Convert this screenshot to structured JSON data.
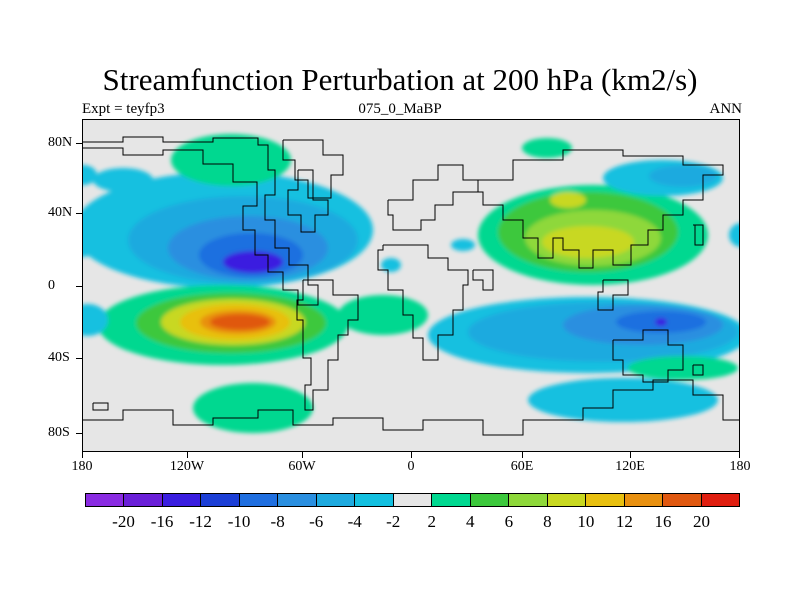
{
  "title": "Streamfunction Perturbation at 200 hPa (km2/s)",
  "subtitle_left": "Expt = teyfp3",
  "subtitle_center": "075_0_MaBP",
  "subtitle_right": "ANN",
  "y_axis_labels": [
    "80N",
    "40N",
    "0",
    "40S",
    "80S"
  ],
  "x_axis_labels": [
    "180",
    "120W",
    "60W",
    "0",
    "60E",
    "120E",
    "180"
  ],
  "colorbar": {
    "labels": [
      "-20",
      "-16",
      "-12",
      "-10",
      "-8",
      "-6",
      "-4",
      "-2",
      "2",
      "4",
      "6",
      "8",
      "10",
      "12",
      "16",
      "20"
    ],
    "colors": [
      "#8a2be2",
      "#6a1fd8",
      "#3a1ee0",
      "#1c3fd6",
      "#1f6fe0",
      "#2a8fe0",
      "#1eaadf",
      "#13c0e0",
      "#e6e6e6",
      "#00d890",
      "#3cc83c",
      "#8ed83a",
      "#c8d820",
      "#e8c010",
      "#e89010",
      "#e05810",
      "#e01e10"
    ]
  },
  "map": {
    "background": "#e6e6e6"
  }
}
